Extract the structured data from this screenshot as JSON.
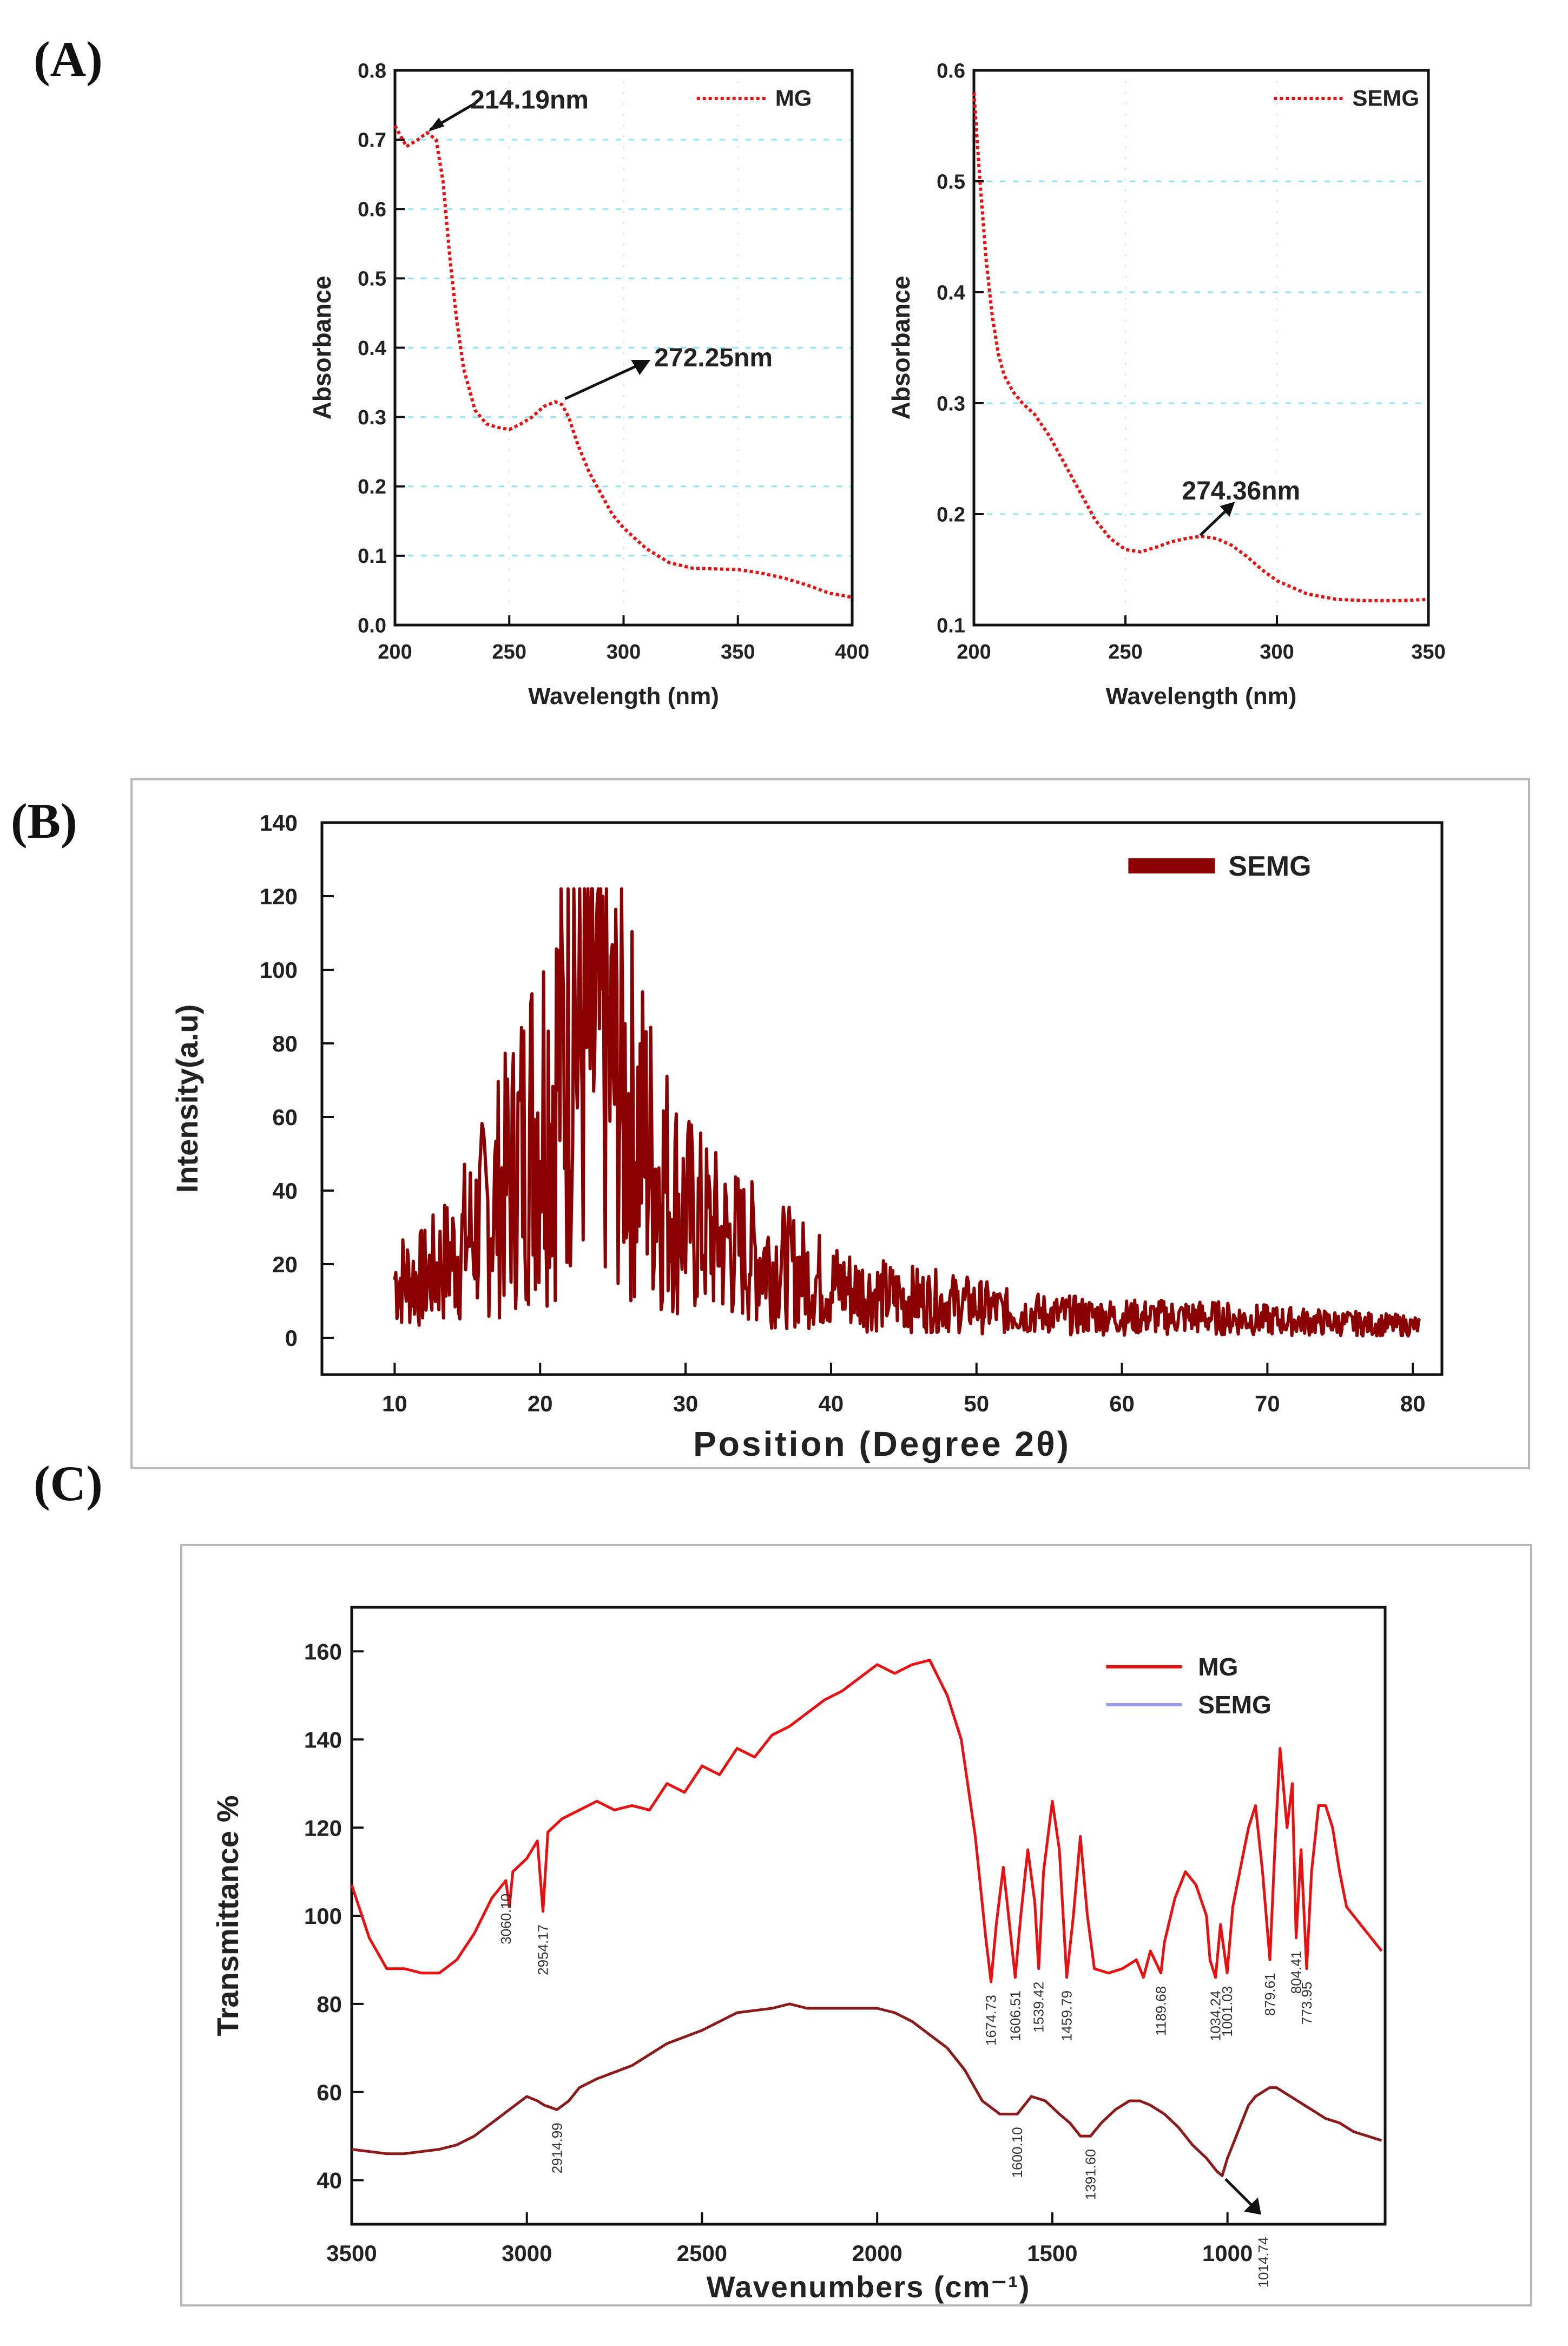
{
  "panel_labels": [
    "(A)",
    "(B)",
    "(C)"
  ],
  "chart_data": [
    {
      "id": "uv_mg",
      "type": "line",
      "xlabel": "Wavelength (nm)",
      "ylabel": "Absorbance",
      "xlim": [
        200,
        400
      ],
      "ylim": [
        0.0,
        0.8
      ],
      "xticks": [
        "200",
        "250",
        "300",
        "350",
        "400"
      ],
      "yticks": [
        "0.0",
        "0.1",
        "0.2",
        "0.3",
        "0.4",
        "0.5",
        "0.6",
        "0.7",
        "0.8"
      ],
      "grid": true,
      "legend": [
        "MG"
      ],
      "series": [
        {
          "name": "MG",
          "color": "#e81010",
          "x": [
            200,
            205,
            210,
            214,
            218,
            221,
            224,
            227,
            230,
            235,
            240,
            245,
            250,
            255,
            260,
            265,
            270,
            273,
            276,
            280,
            285,
            290,
            295,
            300,
            310,
            320,
            330,
            340,
            350,
            360,
            370,
            380,
            390,
            400
          ],
          "y": [
            0.72,
            0.69,
            0.7,
            0.71,
            0.7,
            0.64,
            0.53,
            0.44,
            0.37,
            0.31,
            0.29,
            0.285,
            0.282,
            0.29,
            0.3,
            0.315,
            0.322,
            0.318,
            0.3,
            0.26,
            0.22,
            0.19,
            0.16,
            0.14,
            0.11,
            0.09,
            0.082,
            0.081,
            0.08,
            0.075,
            0.068,
            0.058,
            0.046,
            0.04
          ]
        }
      ],
      "annotations": [
        {
          "text": "214.19nm",
          "x": 214,
          "y": 0.71
        },
        {
          "text": "272.25nm",
          "x": 272,
          "y": 0.32
        }
      ]
    },
    {
      "id": "uv_semg",
      "type": "line",
      "xlabel": "Wavelength (nm)",
      "ylabel": "Absorbance",
      "xlim": [
        200,
        350
      ],
      "ylim": [
        0.1,
        0.6
      ],
      "xticks": [
        "200",
        "250",
        "300",
        "350"
      ],
      "yticks": [
        "0.1",
        "0.2",
        "0.3",
        "0.4",
        "0.5",
        "0.6"
      ],
      "grid": true,
      "legend": [
        "SEMG"
      ],
      "series": [
        {
          "name": "SEMG",
          "color": "#e81010",
          "x": [
            200,
            202,
            204,
            206,
            208,
            210,
            213,
            216,
            220,
            225,
            230,
            235,
            240,
            245,
            250,
            255,
            260,
            265,
            270,
            275,
            280,
            285,
            290,
            295,
            300,
            310,
            320,
            330,
            340,
            350
          ],
          "y": [
            0.58,
            0.5,
            0.43,
            0.38,
            0.345,
            0.325,
            0.31,
            0.3,
            0.29,
            0.27,
            0.245,
            0.22,
            0.195,
            0.178,
            0.168,
            0.166,
            0.17,
            0.175,
            0.178,
            0.18,
            0.178,
            0.172,
            0.162,
            0.15,
            0.14,
            0.128,
            0.123,
            0.122,
            0.122,
            0.123
          ]
        }
      ],
      "annotations": [
        {
          "text": "274.36nm",
          "x": 274,
          "y": 0.178
        }
      ]
    },
    {
      "id": "xrd_semg",
      "type": "line",
      "xlabel": "Position (Degree 2θ)",
      "ylabel": "Intensity(a.u)",
      "xlim": [
        5,
        82
      ],
      "ylim": [
        -10,
        140
      ],
      "xticks": [
        "10",
        "20",
        "30",
        "40",
        "50",
        "60",
        "70",
        "80"
      ],
      "yticks": [
        "0",
        "20",
        "40",
        "60",
        "80",
        "100",
        "120",
        "140"
      ],
      "grid": false,
      "legend": [
        "SEMG"
      ],
      "series": [
        {
          "name": "SEMG",
          "color": "#8b0000",
          "envelope_x": [
            10,
            12,
            14,
            16,
            18,
            20,
            22,
            24,
            26,
            28,
            30,
            32,
            34,
            36,
            38,
            40,
            42,
            44,
            46,
            48,
            50,
            52,
            55,
            60,
            65,
            70,
            75,
            80.5
          ],
          "envelope_y": [
            20,
            20,
            28,
            40,
            55,
            80,
            100,
            98,
            80,
            58,
            42,
            35,
            30,
            26,
            22,
            18,
            16,
            14,
            13,
            12,
            11,
            9,
            8,
            7,
            7,
            6,
            5,
            4
          ],
          "peak_max": 122,
          "peak_at": 22.3
        }
      ]
    },
    {
      "id": "ftir",
      "type": "line",
      "xlabel": "Wavenumbers (cm⁻¹)",
      "ylabel": "Transmittance %",
      "xlim": [
        3500,
        550
      ],
      "ylim": [
        30,
        170
      ],
      "xticks": [
        "3500",
        "3000",
        "2500",
        "2000",
        "1500",
        "1000"
      ],
      "xtick_values": [
        3500,
        3000,
        2500,
        2000,
        1500,
        1000
      ],
      "yticks": [
        "40",
        "60",
        "80",
        "100",
        "120",
        "140",
        "160"
      ],
      "ytick_values": [
        40,
        60,
        80,
        100,
        120,
        140,
        160
      ],
      "grid": false,
      "legend": [
        "MG",
        "SEMG"
      ],
      "legend_colors": [
        "#e81010",
        "#9a9af0"
      ],
      "series": [
        {
          "name": "MG",
          "color": "#e81010",
          "x": [
            3500,
            3450,
            3400,
            3350,
            3300,
            3250,
            3200,
            3150,
            3100,
            3060,
            3050,
            3040,
            3000,
            2970,
            2954,
            2940,
            2900,
            2850,
            2800,
            2750,
            2700,
            2650,
            2600,
            2550,
            2500,
            2450,
            2400,
            2350,
            2300,
            2250,
            2200,
            2150,
            2100,
            2050,
            2000,
            1950,
            1900,
            1850,
            1800,
            1760,
            1720,
            1690,
            1675,
            1660,
            1640,
            1625,
            1606,
            1590,
            1570,
            1550,
            1539,
            1525,
            1500,
            1480,
            1459,
            1440,
            1420,
            1400,
            1380,
            1340,
            1300,
            1260,
            1240,
            1220,
            1190,
            1180,
            1150,
            1120,
            1090,
            1060,
            1050,
            1034,
            1020,
            1001,
            985,
            960,
            940,
            920,
            900,
            879,
            865,
            850,
            830,
            815,
            804,
            790,
            774,
            760,
            740,
            720,
            700,
            680,
            660,
            640,
            620,
            600,
            580,
            560
          ],
          "y": [
            107,
            95,
            88,
            88,
            87,
            87,
            90,
            96,
            104,
            108,
            102,
            110,
            113,
            117,
            101,
            119,
            122,
            124,
            126,
            124,
            125,
            124,
            130,
            128,
            134,
            132,
            138,
            136,
            141,
            143,
            146,
            149,
            151,
            154,
            157,
            155,
            157,
            158,
            150,
            140,
            118,
            95,
            85,
            98,
            111,
            100,
            86,
            100,
            115,
            103,
            88,
            110,
            126,
            115,
            86,
            100,
            118,
            100,
            88,
            87,
            88,
            90,
            86,
            92,
            87,
            94,
            104,
            110,
            107,
            100,
            90,
            86,
            98,
            87,
            102,
            112,
            120,
            125,
            110,
            90,
            115,
            138,
            120,
            130,
            95,
            115,
            88,
            110,
            125,
            125,
            120,
            110,
            102,
            100,
            98,
            96,
            94,
            92
          ]
        },
        {
          "name": "SEMG",
          "color": "#8b1a1a",
          "x": [
            3500,
            3450,
            3400,
            3350,
            3300,
            3250,
            3200,
            3150,
            3100,
            3050,
            3000,
            2970,
            2950,
            2914,
            2880,
            2850,
            2800,
            2700,
            2600,
            2500,
            2400,
            2300,
            2250,
            2200,
            2100,
            2000,
            1950,
            1900,
            1850,
            1800,
            1750,
            1700,
            1650,
            1620,
            1600,
            1560,
            1520,
            1480,
            1450,
            1420,
            1391,
            1360,
            1320,
            1280,
            1250,
            1220,
            1180,
            1140,
            1100,
            1060,
            1030,
            1015,
            1000,
            980,
            960,
            940,
            920,
            900,
            880,
            860,
            840,
            820,
            800,
            760,
            720,
            680,
            640,
            600,
            560
          ],
          "y": [
            47,
            46.5,
            46,
            46,
            46.5,
            47,
            48,
            50,
            53,
            56,
            59,
            58,
            57,
            56,
            58,
            61,
            63,
            66,
            71,
            74,
            78,
            79,
            80,
            79,
            79,
            79,
            78,
            76,
            73,
            70,
            65,
            58,
            55,
            55,
            55,
            59,
            58,
            55,
            53,
            50,
            50,
            53,
            56,
            58,
            58,
            57,
            55,
            52,
            48,
            45,
            42,
            41,
            45,
            49,
            53,
            57,
            59,
            60,
            61,
            61,
            60,
            59,
            58,
            56,
            54,
            53,
            51,
            50,
            49
          ]
        }
      ],
      "peak_labels": [
        {
          "text": "3060.10",
          "x": 3060,
          "series": "MG"
        },
        {
          "text": "2954.17",
          "x": 2954,
          "series": "MG"
        },
        {
          "text": "1674.73",
          "x": 1675,
          "series": "MG"
        },
        {
          "text": "1606.51",
          "x": 1606,
          "series": "MG"
        },
        {
          "text": "1539.42",
          "x": 1539,
          "series": "MG"
        },
        {
          "text": "1459.79",
          "x": 1459,
          "series": "MG"
        },
        {
          "text": "1189.68",
          "x": 1190,
          "series": "MG"
        },
        {
          "text": "1034.24",
          "x": 1034,
          "series": "MG"
        },
        {
          "text": "1001.03",
          "x": 1001,
          "series": "MG"
        },
        {
          "text": "879.61",
          "x": 879,
          "series": "MG"
        },
        {
          "text": "804.41",
          "x": 804,
          "series": "MG"
        },
        {
          "text": "773.95",
          "x": 774,
          "series": "MG"
        },
        {
          "text": "2914.99",
          "x": 2914,
          "series": "SEMG"
        },
        {
          "text": "1600.10",
          "x": 1600,
          "series": "SEMG"
        },
        {
          "text": "1391.60",
          "x": 1391,
          "series": "SEMG"
        },
        {
          "text": "1014.74",
          "x": 1015,
          "series": "SEMG"
        }
      ]
    }
  ]
}
